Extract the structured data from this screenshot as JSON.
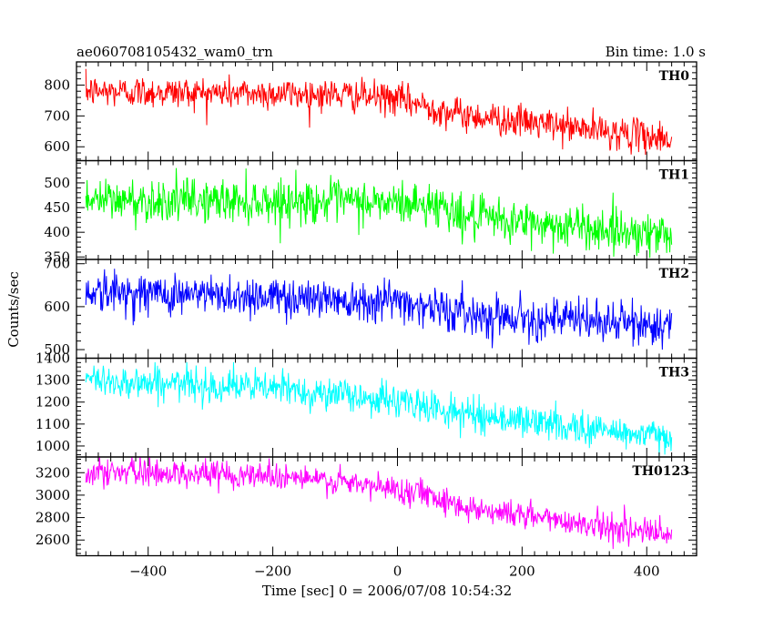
{
  "header": {
    "title": "ae060708105432_wam0_trn",
    "bin_time": "Bin time: 1.0 s"
  },
  "axes": {
    "xlabel": "Time [sec] 0 = 2006/07/08 10:54:32",
    "ylabel": "Counts/sec"
  },
  "chart_data": {
    "type": "line",
    "title": "ae060708105432_wam0_trn",
    "subtitle": "Bin time: 1.0 s",
    "xlabel": "Time [sec] 0 = 2006/07/08 10:54:32",
    "ylabel": "Counts/sec",
    "xlim": [
      -515,
      480
    ],
    "x_ticks": [
      -400,
      -200,
      0,
      200,
      400
    ],
    "x_range": [
      -500,
      440
    ],
    "panels": [
      {
        "name": "TH0",
        "color": "#ff0000",
        "ylim": [
          555,
          875
        ],
        "y_ticks": [
          600,
          700,
          800
        ],
        "trend": [
          [
            -500,
            780
          ],
          [
            -100,
            770
          ],
          [
            0,
            755
          ],
          [
            100,
            705
          ],
          [
            440,
            625
          ]
        ],
        "noise_sd": 26
      },
      {
        "name": "TH1",
        "color": "#00ff00",
        "ylim": [
          345,
          545
        ],
        "y_ticks": [
          350,
          400,
          450,
          500
        ],
        "trend": [
          [
            -500,
            465
          ],
          [
            -100,
            462
          ],
          [
            80,
            455
          ],
          [
            100,
            430
          ],
          [
            440,
            395
          ]
        ],
        "noise_sd": 22
      },
      {
        "name": "TH2",
        "color": "#0000ff",
        "ylim": [
          480,
          710
        ],
        "y_ticks": [
          500,
          600,
          700
        ],
        "trend": [
          [
            -500,
            635
          ],
          [
            0,
            615
          ],
          [
            100,
            585
          ],
          [
            440,
            555
          ]
        ],
        "noise_sd": 24
      },
      {
        "name": "TH3",
        "color": "#00ffff",
        "ylim": [
          950,
          1400
        ],
        "y_ticks": [
          1000,
          1100,
          1200,
          1300,
          1400
        ],
        "trend": [
          [
            -500,
            1300
          ],
          [
            -200,
            1265
          ],
          [
            0,
            1205
          ],
          [
            100,
            1150
          ],
          [
            440,
            1035
          ]
        ],
        "noise_sd": 38
      },
      {
        "name": "TH0123",
        "color": "#ff00ff",
        "ylim": [
          2460,
          3340
        ],
        "y_ticks": [
          2600,
          2800,
          3000,
          3200
        ],
        "trend": [
          [
            -500,
            3210
          ],
          [
            -200,
            3180
          ],
          [
            50,
            3020
          ],
          [
            100,
            2900
          ],
          [
            440,
            2640
          ]
        ],
        "noise_sd": 60
      }
    ]
  }
}
